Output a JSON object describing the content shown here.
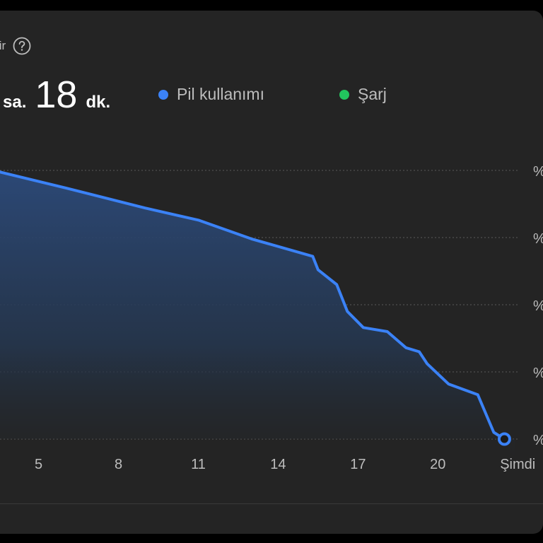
{
  "header": {
    "label": "tir",
    "help_icon": "help-circle-icon"
  },
  "duration": {
    "hours_unit": "sa.",
    "minutes": "18",
    "minutes_unit": "dk."
  },
  "legend": {
    "usage_label": "Pil kullanımı",
    "charge_label": "Şarj"
  },
  "colors": {
    "usage": "#3b82f6",
    "charge": "#22c55e",
    "grid": "#5a5a5a"
  },
  "chart_data": {
    "type": "area",
    "title": "",
    "xlabel": "",
    "ylabel": "",
    "x_ticks": [
      "5",
      "8",
      "11",
      "14",
      "17",
      "20",
      "Şimdi"
    ],
    "x_tick_hours": [
      5,
      8,
      11,
      14,
      17,
      20,
      23
    ],
    "y_tick_labels": [
      "%",
      "%",
      "%",
      "%",
      "%"
    ],
    "ylim": [
      0,
      100
    ],
    "xlim": [
      3.55,
      23.95
    ],
    "series": [
      {
        "name": "Pil kullanımı",
        "x": [
          3.5,
          6,
          9,
          11,
          13,
          15.3,
          15.5,
          16.2,
          16.6,
          17.2,
          18.1,
          18.8,
          19.3,
          19.6,
          20.4,
          21.5,
          22.1,
          22.5,
          22.9
        ],
        "values": [
          99.5,
          93.5,
          86,
          81.5,
          74.5,
          68,
          63,
          57.5,
          47.5,
          41.5,
          40,
          34,
          32.5,
          28,
          20.5,
          16.5,
          2.5,
          0,
          -8
        ]
      }
    ]
  }
}
